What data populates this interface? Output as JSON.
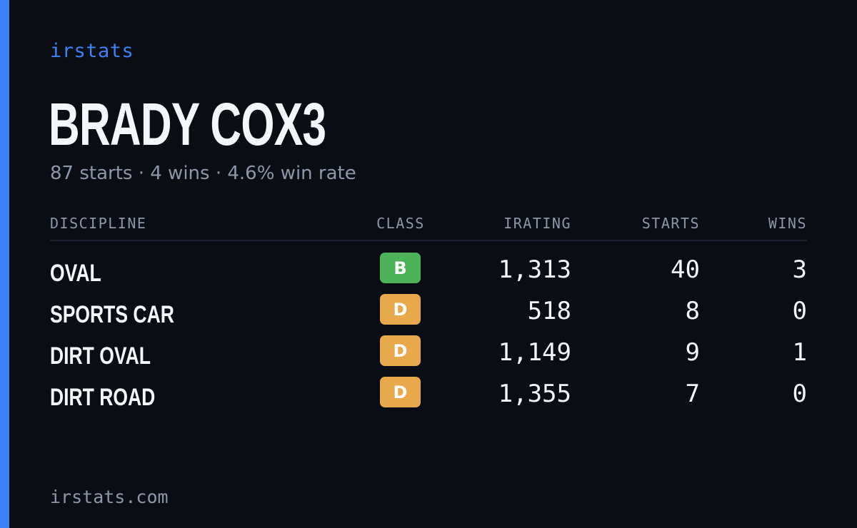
{
  "brand": "irstats",
  "driver_name": "BRADY COX3",
  "summary": "87 starts · 4 wins · 4.6% win rate",
  "table": {
    "headers": {
      "discipline": "DISCIPLINE",
      "class": "CLASS",
      "irating": "IRATING",
      "starts": "STARTS",
      "wins": "WINS"
    },
    "rows": [
      {
        "discipline": "OVAL",
        "class": "B",
        "class_color": "#4cb35a",
        "irating": "1,313",
        "starts": "40",
        "wins": "3"
      },
      {
        "discipline": "SPORTS CAR",
        "class": "D",
        "class_color": "#e8a84c",
        "irating": "518",
        "starts": "8",
        "wins": "0"
      },
      {
        "discipline": "DIRT OVAL",
        "class": "D",
        "class_color": "#e8a84c",
        "irating": "1,149",
        "starts": "9",
        "wins": "1"
      },
      {
        "discipline": "DIRT ROAD",
        "class": "D",
        "class_color": "#e8a84c",
        "irating": "1,355",
        "starts": "7",
        "wins": "0"
      }
    ]
  },
  "footer": "irstats.com",
  "colors": {
    "accent": "#3b82f6",
    "background": "#0a0d14"
  }
}
